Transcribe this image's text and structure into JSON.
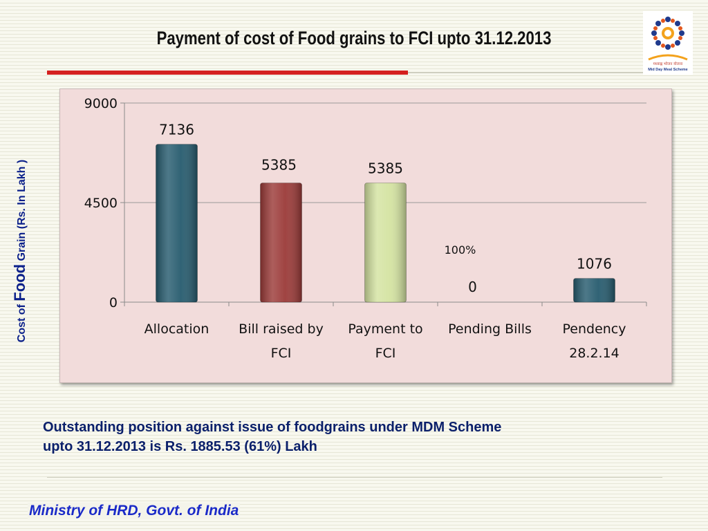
{
  "slide": {
    "title": "Payment of cost of Food grains to FCI upto 31.12.2013",
    "ylabel_part1": "Cost of ",
    "ylabel_part2": "Food",
    "ylabel_part3": " Grain (Rs. In Lakh )",
    "logo": {
      "text1": "मध्याह्न भोजन योजना",
      "text2": "Mid Day Meal Scheme"
    },
    "note_line1": "Outstanding position against issue of foodgrains under MDM Scheme",
    "note_line2": "upto 31.12.2013 is Rs. 1885.53 (61%) Lakh",
    "footer": "Ministry of HRD, Govt. of India"
  },
  "chart_data": {
    "type": "bar",
    "categories": [
      [
        "Allocation"
      ],
      [
        "Bill raised by",
        "FCI"
      ],
      [
        "Payment to",
        "FCI"
      ],
      [
        "Pending Bills"
      ],
      [
        "Pendency",
        "28.2.14"
      ]
    ],
    "values": [
      7136,
      5385,
      5385,
      0,
      1076
    ],
    "data_labels": [
      "7136",
      "5385",
      "5385",
      "0",
      "1076"
    ],
    "bar_colors": [
      "#265b6e",
      "#9b3a38",
      "#d4e3a1",
      null,
      "#265b6e"
    ],
    "annotation": "100%",
    "ylim": [
      0,
      9000
    ],
    "yticks": [
      0,
      4500,
      9000
    ],
    "grid": true
  }
}
